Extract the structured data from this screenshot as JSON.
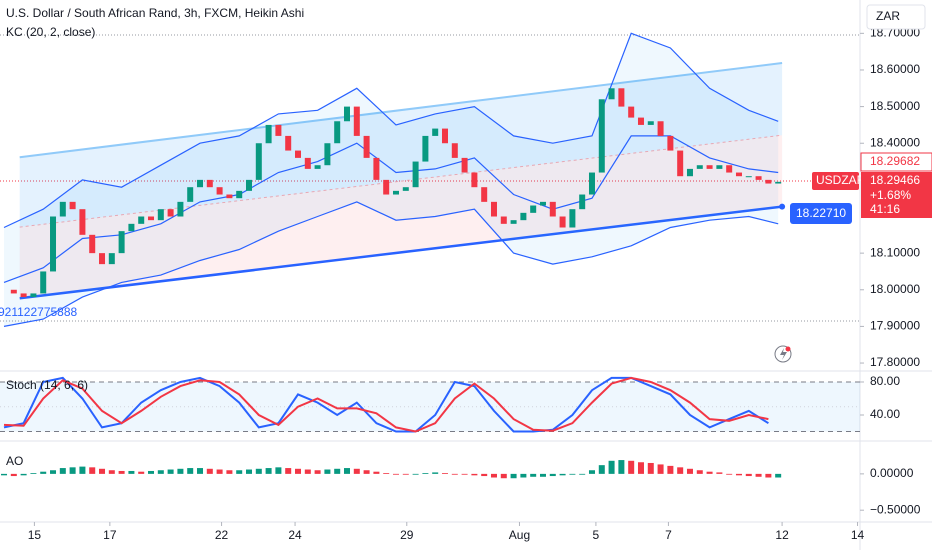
{
  "chart_data": [
    {
      "type": "candlestick",
      "title": "U.S. Dollar / South African Rand, 3h, FXCM, Heikin Ashi",
      "indicator": "KC (20, 2, close)",
      "currency": "ZAR",
      "symbol": "USDZAR",
      "annotation": "921122775888",
      "price_labels": [
        18.29682,
        18.29466
      ],
      "change": "+1.68%",
      "countdown": "41:16",
      "xlim": [
        -0.41,
        87.35
      ],
      "ylim": [
        17.781,
        18.791
      ],
      "yticks": [
        {
          "value": 18.7,
          "label": "18.70000"
        },
        {
          "value": 18.6,
          "label": "18.60000"
        },
        {
          "value": 18.5,
          "label": "18.50000"
        },
        {
          "value": 18.4,
          "label": "18.40000"
        },
        {
          "value": 18.1,
          "label": "18.10000"
        },
        {
          "value": 18.0,
          "label": "18.00000"
        },
        {
          "value": 17.9,
          "label": "17.90000"
        },
        {
          "value": 17.8,
          "label": "17.80000"
        }
      ],
      "x": [
        0,
        1,
        2,
        3,
        4,
        5,
        6,
        7,
        8,
        9,
        10,
        11,
        12,
        13,
        14,
        15,
        16,
        17,
        18,
        19,
        20,
        21,
        22,
        23,
        24,
        25,
        26,
        27,
        28,
        29,
        30,
        31,
        32,
        33,
        34,
        35,
        36,
        37,
        38,
        39,
        40,
        41,
        42,
        43,
        44,
        45,
        46,
        47,
        48,
        49,
        50,
        51,
        52,
        53,
        54,
        55,
        56,
        57,
        58,
        59,
        60,
        61,
        62,
        63,
        64,
        65,
        66,
        67,
        68,
        69,
        70,
        71,
        72,
        73,
        74,
        75,
        76,
        77,
        78,
        79
      ],
      "values": [
        18.0,
        17.99,
        17.98,
        17.99,
        18.05,
        18.2,
        18.24,
        18.22,
        18.15,
        18.1,
        18.07,
        18.1,
        18.16,
        18.18,
        18.2,
        18.19,
        18.22,
        18.2,
        18.24,
        18.28,
        18.3,
        18.28,
        18.26,
        18.25,
        18.27,
        18.3,
        18.4,
        18.45,
        18.42,
        18.38,
        18.36,
        18.33,
        18.34,
        18.4,
        18.46,
        18.5,
        18.42,
        18.36,
        18.3,
        18.26,
        18.27,
        18.28,
        18.35,
        18.42,
        18.44,
        18.4,
        18.36,
        18.32,
        18.28,
        18.24,
        18.2,
        18.18,
        18.19,
        18.21,
        18.23,
        18.24,
        18.2,
        18.17,
        18.22,
        18.26,
        18.32,
        18.52,
        18.55,
        18.5,
        18.47,
        18.45,
        18.46,
        18.42,
        18.38,
        18.31,
        18.33,
        18.34,
        18.33,
        18.34,
        18.32,
        18.31,
        18.31,
        18.3,
        18.29,
        18.29466
      ],
      "up_color": "#089981",
      "down_color": "#f23645",
      "kc": {
        "color": "#2962ff",
        "x": [
          0,
          4,
          8,
          12,
          16,
          20,
          24,
          28,
          32,
          36,
          40,
          44,
          48,
          52,
          56,
          60,
          64,
          68,
          72,
          76,
          79
        ],
        "upper": [
          18.17,
          18.22,
          18.3,
          18.28,
          18.34,
          18.4,
          18.42,
          18.48,
          18.49,
          18.55,
          18.45,
          18.48,
          18.5,
          18.42,
          18.4,
          18.42,
          18.7,
          18.66,
          18.55,
          18.49,
          18.46
        ],
        "middle": [
          18.02,
          18.06,
          18.14,
          18.15,
          18.18,
          18.24,
          18.26,
          18.32,
          18.35,
          18.4,
          18.32,
          18.33,
          18.36,
          18.26,
          18.22,
          18.25,
          18.42,
          18.42,
          18.36,
          18.33,
          18.32
        ],
        "lower": [
          17.9,
          17.92,
          17.98,
          18.02,
          18.04,
          18.08,
          18.11,
          18.16,
          18.2,
          18.24,
          18.19,
          18.2,
          18.22,
          18.1,
          18.07,
          18.09,
          18.12,
          18.17,
          18.19,
          18.2,
          18.18
        ]
      },
      "channel": {
        "x": [
          1.6,
          79.4
        ],
        "upper": [
          18.362,
          18.619
        ],
        "middle": [
          18.171,
          18.422
        ],
        "lower": [
          17.977,
          18.2271
        ]
      },
      "channel_label": {
        "value": 18.2271,
        "label": "18.22710"
      }
    },
    {
      "type": "line",
      "title": "Stoch (14, 6, 6)",
      "xlim": [
        -0.41,
        87.35
      ],
      "ylim": [
        9.7,
        92.1
      ],
      "yticks": [
        {
          "value": 80,
          "label": "80.00"
        },
        {
          "value": 40,
          "label": "40.00"
        }
      ],
      "levels": [
        80,
        50,
        20
      ],
      "x": [
        0,
        2,
        4,
        6,
        8,
        10,
        12,
        14,
        16,
        18,
        20,
        22,
        24,
        26,
        28,
        30,
        32,
        34,
        36,
        38,
        40,
        42,
        44,
        46,
        48,
        50,
        52,
        54,
        56,
        58,
        60,
        62,
        64,
        66,
        68,
        70,
        72,
        74,
        76,
        78
      ],
      "series": [
        {
          "color": "#2962ff",
          "values": [
            25,
            30,
            80,
            85,
            60,
            25,
            30,
            55,
            70,
            80,
            85,
            75,
            55,
            25,
            30,
            65,
            55,
            40,
            55,
            30,
            20,
            20,
            40,
            80,
            75,
            45,
            20,
            20,
            22,
            40,
            70,
            85,
            85,
            75,
            65,
            40,
            25,
            35,
            45,
            30
          ]
        },
        {
          "color": "#f23645",
          "values": [
            28,
            27,
            60,
            82,
            72,
            45,
            30,
            45,
            62,
            75,
            82,
            80,
            65,
            40,
            28,
            50,
            60,
            48,
            48,
            42,
            25,
            20,
            30,
            60,
            78,
            60,
            35,
            22,
            21,
            30,
            55,
            78,
            85,
            80,
            70,
            55,
            35,
            33,
            40,
            35
          ]
        }
      ]
    },
    {
      "type": "bar",
      "title": "AO",
      "xlim": [
        -0.41,
        87.35
      ],
      "ylim": [
        -0.6625,
        0.425
      ],
      "yticks": [
        {
          "value": 0,
          "label": "0.00000"
        },
        {
          "value": -0.5,
          "label": "−0.50000"
        }
      ],
      "xticks": [
        {
          "value": 3.1,
          "label": "15"
        },
        {
          "value": 10.8,
          "label": "17"
        },
        {
          "value": 22.2,
          "label": "22"
        },
        {
          "value": 29.7,
          "label": "24"
        },
        {
          "value": 41.1,
          "label": "29"
        },
        {
          "value": 52.6,
          "label": "Aug"
        },
        {
          "value": 60.4,
          "label": "5"
        },
        {
          "value": 67.8,
          "label": "7"
        },
        {
          "value": 79.4,
          "label": "12"
        },
        {
          "value": 87.1,
          "label": "14"
        }
      ],
      "x": [
        0,
        1,
        2,
        3,
        4,
        5,
        6,
        7,
        8,
        9,
        10,
        11,
        12,
        13,
        14,
        15,
        16,
        17,
        18,
        19,
        20,
        21,
        22,
        23,
        24,
        25,
        26,
        27,
        28,
        29,
        30,
        31,
        32,
        33,
        34,
        35,
        36,
        37,
        38,
        39,
        40,
        41,
        42,
        43,
        44,
        45,
        46,
        47,
        48,
        49,
        50,
        51,
        52,
        53,
        54,
        55,
        56,
        57,
        58,
        59,
        60,
        61,
        62,
        63,
        64,
        65,
        66,
        67,
        68,
        69,
        70,
        71,
        72,
        73,
        74,
        75,
        76,
        77,
        78,
        79
      ],
      "values": [
        -0.02,
        -0.03,
        -0.02,
        0.01,
        0.03,
        0.05,
        0.08,
        0.09,
        0.1,
        0.09,
        0.07,
        0.05,
        0.04,
        0.04,
        0.03,
        0.04,
        0.05,
        0.06,
        0.07,
        0.08,
        0.08,
        0.07,
        0.06,
        0.05,
        0.05,
        0.06,
        0.07,
        0.08,
        0.09,
        0.08,
        0.07,
        0.06,
        0.05,
        0.06,
        0.07,
        0.08,
        0.07,
        0.05,
        0.03,
        0.01,
        0.0,
        -0.01,
        0.0,
        0.01,
        0.02,
        0.01,
        0.0,
        -0.01,
        -0.02,
        -0.03,
        -0.05,
        -0.06,
        -0.06,
        -0.05,
        -0.04,
        -0.04,
        -0.03,
        -0.02,
        -0.01,
        0.0,
        0.05,
        0.12,
        0.18,
        0.19,
        0.18,
        0.16,
        0.15,
        0.13,
        0.11,
        0.09,
        0.07,
        0.05,
        0.03,
        0.02,
        0.0,
        -0.02,
        -0.03,
        -0.04,
        -0.05,
        -0.05
      ],
      "up_color": "#089981",
      "down_color": "#f23645"
    }
  ]
}
